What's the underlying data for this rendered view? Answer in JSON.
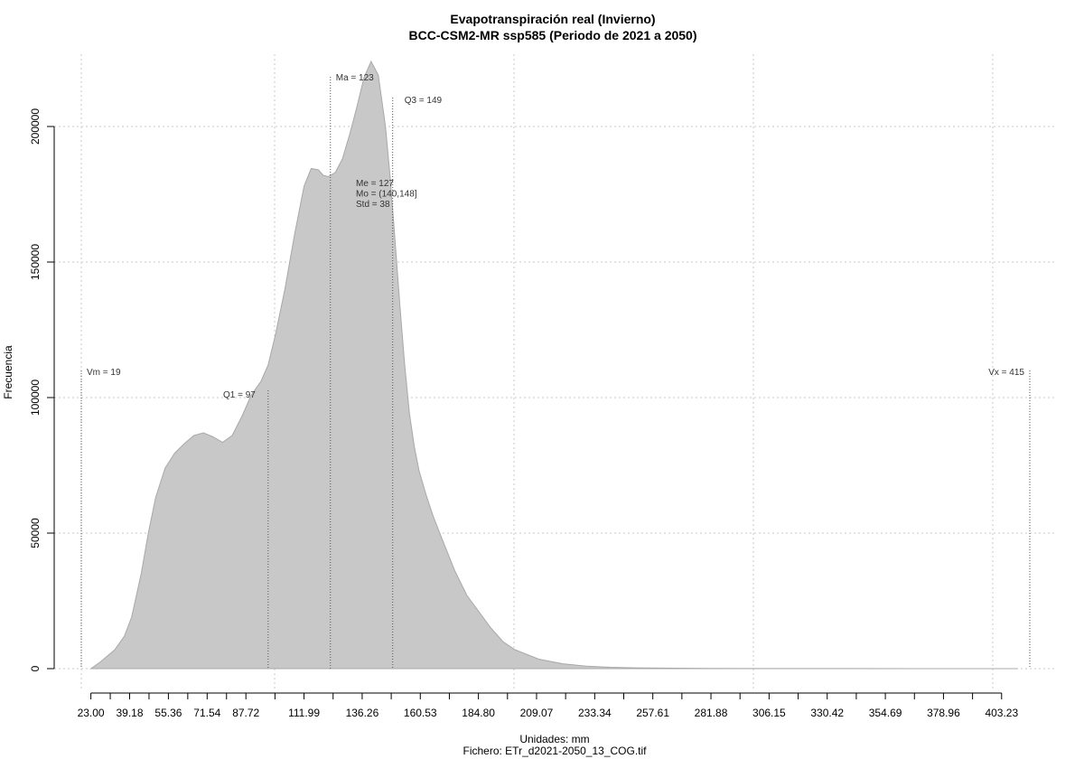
{
  "chart_data": {
    "type": "area",
    "title": "Evapotranspiración real (Invierno)",
    "subtitle": "BCC-CSM2-MR ssp585 (Periodo de 2021 a 2050)",
    "xlabel": "Unidades: mm",
    "ylabel": "Frecuencia",
    "footer": "Fichero: ETr_d2021-2050_13_COG.tif",
    "xlim": [
      19,
      415
    ],
    "ylim": [
      0,
      224000
    ],
    "grid": true,
    "x_ticks": [
      "23.00",
      "39.18",
      "55.36",
      "71.54",
      "87.72",
      "111.99",
      "136.26",
      "160.53",
      "184.80",
      "209.07",
      "233.34",
      "257.61",
      "281.88",
      "306.15",
      "330.42",
      "354.69",
      "378.96",
      "403.23"
    ],
    "x_tick_values": [
      23.0,
      39.18,
      55.36,
      71.54,
      87.72,
      111.99,
      136.26,
      160.53,
      184.8,
      209.07,
      233.34,
      257.61,
      281.88,
      306.15,
      330.42,
      354.69,
      378.96,
      403.23
    ],
    "y_ticks": [
      "0",
      "50000",
      "100000",
      "150000",
      "200000"
    ],
    "y_tick_values": [
      0,
      50000,
      100000,
      150000,
      200000
    ],
    "colors": {
      "fill": "#c8c8c8",
      "outline": "#a8a8a8",
      "grid": "#c8c8c8",
      "marker": "#555555"
    },
    "series": [
      {
        "x": [
          23,
          27,
          33,
          37,
          40,
          44,
          47,
          50,
          54,
          58,
          62,
          66,
          70,
          74,
          78,
          82,
          86,
          90,
          94,
          97,
          100,
          104,
          108,
          112,
          115,
          118,
          120,
          122,
          125,
          128,
          131,
          134,
          137,
          140,
          143,
          146,
          148,
          150,
          152,
          154,
          156,
          158,
          160,
          163,
          166,
          170,
          175,
          180,
          185,
          190,
          195,
          200,
          210,
          220,
          230,
          240,
          250,
          260,
          280,
          300,
          340,
          380,
          410
        ],
        "y": [
          0,
          2500,
          7000,
          12000,
          19000,
          35000,
          50000,
          63000,
          74000,
          79500,
          83000,
          86000,
          87000,
          85500,
          83500,
          86000,
          93000,
          101000,
          106000,
          112000,
          123000,
          140000,
          160000,
          178000,
          184500,
          184000,
          182000,
          181500,
          183000,
          188000,
          197000,
          207000,
          218000,
          224000,
          219000,
          200000,
          181000,
          158000,
          134000,
          112000,
          94000,
          82000,
          73000,
          64000,
          56000,
          47000,
          36000,
          27000,
          21000,
          15000,
          10000,
          7000,
          3500,
          1800,
          900,
          500,
          300,
          200,
          100,
          50,
          20,
          5,
          0
        ]
      }
    ],
    "annotations": {
      "vm": {
        "value": 19,
        "label": "Vm = 19"
      },
      "vx": {
        "value": 415,
        "label": "Vx = 415"
      },
      "q1": {
        "value": 97,
        "label": "Q1 = 97"
      },
      "ma": {
        "value": 123,
        "label": "Ma = 123"
      },
      "q3": {
        "value": 149,
        "label": "Q3 = 149"
      },
      "stats": [
        "Me = 127",
        "Mo = (140,148]",
        "Std = 38"
      ]
    }
  }
}
